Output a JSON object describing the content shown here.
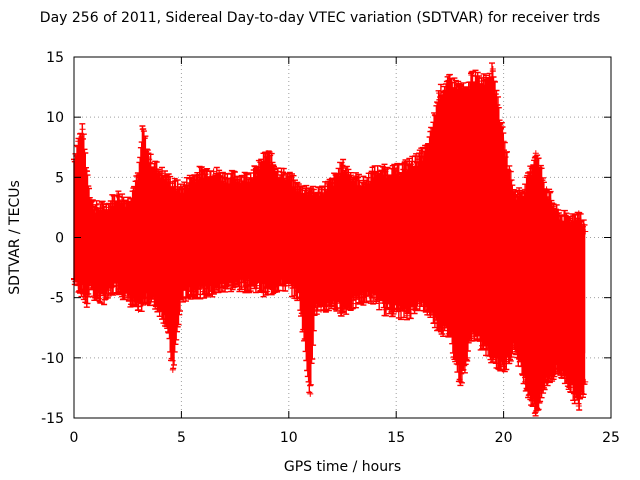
{
  "chart_data": {
    "type": "scatter",
    "title": "Day 256 of 2011, Sidereal Day-to-day VTEC variation (SDTVAR) for receiver trds",
    "xlabel": "GPS time / hours",
    "ylabel": "SDTVAR / TECUs",
    "xlim": [
      0,
      25
    ],
    "ylim": [
      -15,
      15
    ],
    "xticks": [
      0,
      5,
      10,
      15,
      20,
      25
    ],
    "yticks": [
      -15,
      -10,
      -5,
      0,
      5,
      10,
      15
    ],
    "grid": true,
    "marker": "+",
    "color": "#ff0000",
    "series": [
      {
        "name": "SDTVAR",
        "x": [
          0.0,
          0.2,
          0.4,
          0.6,
          0.8,
          1.0,
          1.5,
          2.0,
          2.5,
          3.0,
          3.2,
          3.5,
          4.0,
          4.3,
          4.6,
          5.0,
          5.5,
          6.0,
          6.5,
          7.0,
          7.5,
          8.0,
          8.5,
          9.0,
          9.5,
          10.0,
          10.5,
          11.0,
          11.2,
          11.5,
          12.0,
          12.5,
          13.0,
          13.5,
          14.0,
          14.5,
          15.0,
          15.5,
          16.0,
          16.5,
          17.0,
          17.5,
          18.0,
          18.3,
          18.5,
          19.0,
          19.5,
          20.0,
          20.5,
          21.0,
          21.5,
          22.0,
          22.5,
          23.0,
          23.5,
          23.8
        ],
        "upper": [
          6.5,
          8.0,
          9.0,
          5.5,
          3.0,
          2.5,
          2.5,
          3.5,
          3.0,
          5.0,
          9.0,
          6.5,
          5.5,
          5.0,
          4.5,
          4.0,
          5.0,
          5.5,
          5.5,
          5.0,
          5.0,
          5.0,
          5.5,
          7.0,
          5.5,
          5.0,
          4.0,
          4.0,
          3.5,
          4.0,
          4.5,
          6.0,
          5.0,
          4.5,
          5.5,
          5.5,
          5.5,
          6.0,
          6.5,
          7.5,
          12.0,
          13.0,
          12.5,
          12.0,
          13.5,
          13.0,
          14.0,
          8.0,
          3.5,
          4.0,
          7.0,
          4.0,
          2.0,
          1.5,
          2.0,
          0.5
        ],
        "lower": [
          -3.5,
          -4.0,
          -4.5,
          -5.5,
          -4.0,
          -5.0,
          -5.0,
          -4.0,
          -5.0,
          -6.0,
          -5.5,
          -5.0,
          -6.0,
          -7.0,
          -11.0,
          -5.0,
          -4.5,
          -4.5,
          -4.5,
          -4.0,
          -4.0,
          -4.0,
          -4.0,
          -4.5,
          -4.0,
          -4.0,
          -5.0,
          -13.0,
          -6.0,
          -6.0,
          -5.5,
          -6.0,
          -5.5,
          -5.0,
          -5.0,
          -6.0,
          -6.0,
          -6.5,
          -5.5,
          -6.0,
          -7.5,
          -8.0,
          -12.0,
          -10.0,
          -8.0,
          -9.0,
          -10.0,
          -11.0,
          -9.0,
          -12.0,
          -14.5,
          -12.0,
          -11.0,
          -12.0,
          -14.0,
          -12.0
        ]
      }
    ]
  }
}
